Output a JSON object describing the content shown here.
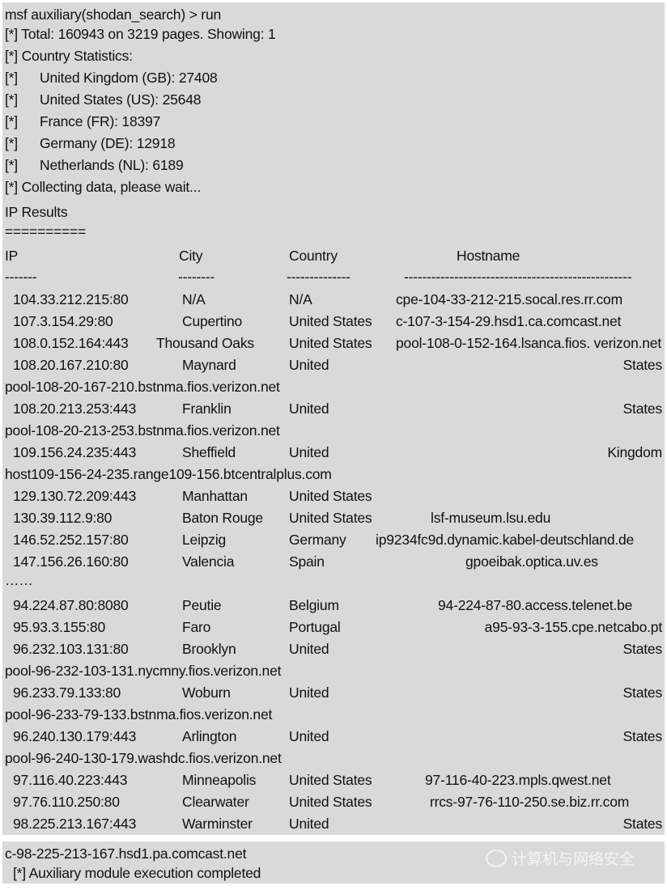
{
  "header": {
    "prompt": "msf auxiliary(shodan_search) > run",
    "total": "[*] Total: 160943 on 3219 pages. Showing: 1",
    "stats_label": "[*] Country Statistics:",
    "stats": [
      {
        "marker": "[*]",
        "text": "United Kingdom (GB): 27408"
      },
      {
        "marker": "[*]",
        "text": "United States (US): 25648"
      },
      {
        "marker": "[*]",
        "text": "France (FR): 18397"
      },
      {
        "marker": "[*]",
        "text": "Germany (DE): 12918"
      },
      {
        "marker": "[*]",
        "text": "Netherlands (NL): 6189"
      }
    ],
    "collecting": "[*] Collecting data, please wait...",
    "ip_results": "IP Results",
    "separator": "=========="
  },
  "columns": [
    "IP",
    "City",
    "Country",
    "Hostname"
  ],
  "column_dashes": [
    "-------",
    "--------",
    "--------------",
    "--------------------------------------------------"
  ],
  "rows": [
    {
      "ip": "104.33.212.215:80",
      "city": "N/A",
      "country": "N/A",
      "hostname": "cpe-104-33-212-215.socal.res.rr.com"
    },
    {
      "ip": "107.3.154.29:80",
      "city": "Cupertino",
      "country": "United States",
      "hostname": "c-107-3-154-29.hsd1.ca.comcast.net"
    },
    {
      "ip": "108.0.152.164:443",
      "city": "Thousand Oaks",
      "country": "United States",
      "hostname": "pool-108-0-152-164.lsanca.fios. verizon.net"
    },
    {
      "ip": "108.20.167.210:80",
      "city": "Maynard",
      "country": "United",
      "country_tail": "States",
      "hostname": "pool-108-20-167-210.bstnma.fios.verizon.net"
    },
    {
      "ip": "108.20.213.253:443",
      "city": "Franklin",
      "country": "United",
      "country_tail": "States",
      "hostname": "pool-108-20-213-253.bstnma.fios.verizon.net"
    },
    {
      "ip": "109.156.24.235:443",
      "city": "Sheffield",
      "country": "United",
      "country_tail": "Kingdom",
      "hostname": "host109-156-24-235.range109-156.btcentralplus.com"
    },
    {
      "ip": "129.130.72.209:443",
      "city": "Manhattan",
      "country": "United States",
      "hostname": ""
    },
    {
      "ip": "130.39.112.9:80",
      "city": "Baton Rouge",
      "country": "United States",
      "hostname": "lsf-museum.lsu.edu"
    },
    {
      "ip": "146.52.252.157:80",
      "city": "Leipzig",
      "country": "Germany",
      "hostname": "ip9234fc9d.dynamic.kabel-deutschland.de"
    },
    {
      "ip": "147.156.26.160:80",
      "city": "Valencia",
      "country": "Spain",
      "hostname": "gpoeibak.optica.uv.es"
    },
    {
      "ellipsis": "……"
    },
    {
      "ip": "94.224.87.80:8080",
      "city": "Peutie",
      "country": "Belgium",
      "hostname": "94-224-87-80.access.telenet.be"
    },
    {
      "ip": "95.93.3.155:80",
      "city": "Faro",
      "country": "Portugal",
      "hostname": "a95-93-3-155.cpe.netcabo.pt"
    },
    {
      "ip": "96.232.103.131:80",
      "city": "Brooklyn",
      "country": "United",
      "country_tail": "States",
      "hostname": "pool-96-232-103-131.nycmny.fios.verizon.net"
    },
    {
      "ip": "96.233.79.133:80",
      "city": "Woburn",
      "country": "United",
      "country_tail": "States",
      "hostname": "pool-96-233-79-133.bstnma.fios.verizon.net"
    },
    {
      "ip": "96.240.130.179:443",
      "city": "Arlington",
      "country": "United",
      "country_tail": "States",
      "hostname": "pool-96-240-130-179.washdc.fios.verizon.net"
    },
    {
      "ip": "97.116.40.223:443",
      "city": "Minneapolis",
      "country": "United States",
      "hostname": "97-116-40-223.mpls.qwest.net"
    },
    {
      "ip": "97.76.110.250:80",
      "city": "Clearwater",
      "country": "United States",
      "hostname": "rrcs-97-76-110-250.se.biz.rr.com"
    },
    {
      "ip": "98.225.213.167:443",
      "city": "Warminster",
      "country": "United",
      "country_tail": "States",
      "hostname": "c-98-225-213-167.hsd1.pa.comcast.net"
    }
  ],
  "footer": {
    "completed": "[*] Auxiliary module execution completed",
    "watermark": "计算机与网络安全"
  }
}
